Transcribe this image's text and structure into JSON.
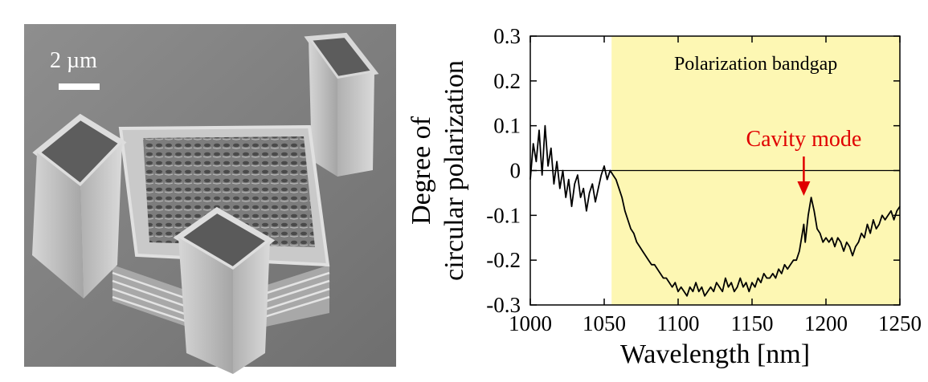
{
  "sem_image": {
    "scale_bar_label": "2 µm"
  },
  "chart_data": {
    "type": "line",
    "title": "",
    "xlabel": "Wavelength [nm]",
    "ylabel_line1": "Degree of",
    "ylabel_line2": "circular polarization",
    "xlim": [
      1000,
      1250
    ],
    "ylim": [
      -0.3,
      0.3
    ],
    "xticks": [
      1000,
      1050,
      1100,
      1150,
      1200,
      1250
    ],
    "yticks": [
      0.3,
      0.2,
      0.1,
      0,
      -0.1,
      -0.2,
      -0.3
    ],
    "ytick_labels": [
      "0.3",
      "0.2",
      "0.1",
      "0",
      "-0.1",
      "-0.2",
      "-0.3"
    ],
    "bandgap_range": [
      1055,
      1250
    ],
    "bandgap_label": "Polarization bandgap",
    "bandgap_color": "#fdf7b3",
    "annotation": {
      "text": "Cavity mode",
      "x": 1185,
      "color": "#e00000"
    },
    "series": [
      {
        "color": "#000000",
        "x": [
          1000,
          1002,
          1004,
          1006,
          1008,
          1010,
          1012,
          1014,
          1016,
          1018,
          1020,
          1022,
          1024,
          1026,
          1028,
          1030,
          1032,
          1034,
          1036,
          1038,
          1040,
          1042,
          1044,
          1046,
          1048,
          1050,
          1052,
          1054,
          1056,
          1058,
          1060,
          1062,
          1064,
          1066,
          1068,
          1070,
          1072,
          1074,
          1076,
          1078,
          1080,
          1082,
          1084,
          1086,
          1088,
          1090,
          1092,
          1094,
          1096,
          1098,
          1100,
          1102,
          1104,
          1106,
          1108,
          1110,
          1112,
          1114,
          1116,
          1118,
          1120,
          1122,
          1124,
          1126,
          1128,
          1130,
          1132,
          1134,
          1136,
          1138,
          1140,
          1142,
          1144,
          1146,
          1148,
          1150,
          1152,
          1154,
          1156,
          1158,
          1160,
          1162,
          1164,
          1166,
          1168,
          1170,
          1172,
          1174,
          1176,
          1178,
          1180,
          1182,
          1184,
          1185,
          1186,
          1188,
          1190,
          1192,
          1194,
          1196,
          1198,
          1200,
          1202,
          1204,
          1206,
          1208,
          1210,
          1212,
          1214,
          1216,
          1218,
          1220,
          1222,
          1224,
          1226,
          1228,
          1230,
          1232,
          1234,
          1236,
          1238,
          1240,
          1242,
          1244,
          1246,
          1248,
          1250
        ],
        "y": [
          -0.02,
          0.06,
          0.02,
          0.09,
          -0.01,
          0.1,
          0.01,
          0.05,
          -0.03,
          0.02,
          -0.04,
          0.0,
          -0.06,
          -0.02,
          -0.08,
          -0.03,
          -0.01,
          -0.06,
          -0.04,
          -0.09,
          -0.05,
          -0.03,
          -0.07,
          -0.04,
          -0.01,
          0.01,
          -0.02,
          0.0,
          -0.01,
          -0.02,
          -0.04,
          -0.06,
          -0.09,
          -0.11,
          -0.13,
          -0.14,
          -0.16,
          -0.17,
          -0.18,
          -0.19,
          -0.2,
          -0.21,
          -0.21,
          -0.22,
          -0.23,
          -0.24,
          -0.24,
          -0.25,
          -0.26,
          -0.25,
          -0.27,
          -0.26,
          -0.27,
          -0.28,
          -0.26,
          -0.27,
          -0.25,
          -0.27,
          -0.26,
          -0.28,
          -0.27,
          -0.26,
          -0.27,
          -0.25,
          -0.26,
          -0.27,
          -0.24,
          -0.26,
          -0.25,
          -0.27,
          -0.26,
          -0.24,
          -0.26,
          -0.25,
          -0.27,
          -0.25,
          -0.26,
          -0.24,
          -0.25,
          -0.23,
          -0.24,
          -0.24,
          -0.23,
          -0.24,
          -0.22,
          -0.23,
          -0.21,
          -0.22,
          -0.21,
          -0.2,
          -0.2,
          -0.18,
          -0.14,
          -0.12,
          -0.16,
          -0.1,
          -0.06,
          -0.09,
          -0.13,
          -0.14,
          -0.16,
          -0.15,
          -0.16,
          -0.15,
          -0.17,
          -0.15,
          -0.16,
          -0.18,
          -0.16,
          -0.17,
          -0.19,
          -0.17,
          -0.16,
          -0.14,
          -0.15,
          -0.12,
          -0.14,
          -0.11,
          -0.13,
          -0.12,
          -0.1,
          -0.11,
          -0.1,
          -0.09,
          -0.11,
          -0.09,
          -0.08
        ]
      }
    ]
  }
}
